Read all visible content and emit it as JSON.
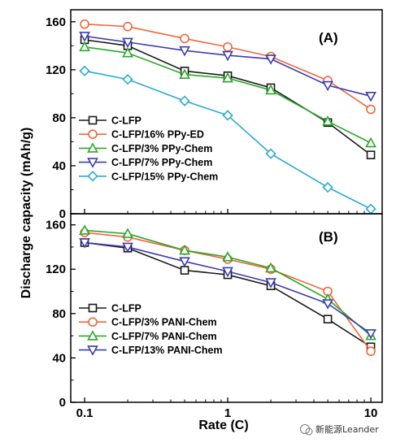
{
  "y_axis_title": "Discharge capacity (mAh/g)",
  "x_axis_title": "Rate (C)",
  "watermark": "新能源Leander",
  "x_ticks": [
    0.1,
    1,
    10
  ],
  "x_tick_labels": [
    "0.1",
    "1",
    "10"
  ],
  "colors": {
    "C-LFP": "#1a1a1a",
    "red": "#f0673a",
    "green": "#2aa82a",
    "blue": "#3c3cb4",
    "cyan": "#29a9d6"
  },
  "chart_data": [
    {
      "type": "line",
      "panel_label": "(A)",
      "xscale": "log",
      "xlim": [
        0.08,
        12
      ],
      "ylim": [
        0,
        170
      ],
      "y_ticks": [
        0,
        40,
        80,
        120,
        160
      ],
      "x": [
        0.1,
        0.2,
        0.5,
        1,
        2,
        5,
        10
      ],
      "legend_position": "lower-left",
      "series": [
        {
          "name": "C-LFP",
          "marker": "square",
          "color": "#1a1a1a",
          "values": [
            145,
            140,
            119,
            115,
            105,
            76,
            49
          ]
        },
        {
          "name": "C-LFP/16% PPy-ED",
          "marker": "circle",
          "color": "#f0673a",
          "values": [
            158,
            156,
            146,
            139,
            131,
            111,
            87
          ]
        },
        {
          "name": "C-LFP/3% PPy-Chem",
          "marker": "triangle-up",
          "color": "#2aa82a",
          "values": [
            139,
            134,
            116,
            113,
            103,
            77,
            59
          ]
        },
        {
          "name": "C-LFP/7% PPy-Chem",
          "marker": "triangle-down",
          "color": "#3c3cb4",
          "values": [
            148,
            143,
            136,
            132,
            129,
            107,
            98
          ]
        },
        {
          "name": "C-LFP/15% PPy-Chem",
          "marker": "diamond",
          "color": "#29a9d6",
          "values": [
            119,
            112,
            94,
            82,
            50,
            22,
            4
          ]
        }
      ]
    },
    {
      "type": "line",
      "panel_label": "(B)",
      "xscale": "log",
      "xlim": [
        0.08,
        12
      ],
      "ylim": [
        0,
        170
      ],
      "y_ticks": [
        0,
        40,
        80,
        120,
        160
      ],
      "x": [
        0.1,
        0.2,
        0.5,
        1,
        2,
        5,
        10
      ],
      "legend_position": "lower-left",
      "series": [
        {
          "name": "C-LFP",
          "marker": "square",
          "color": "#1a1a1a",
          "values": [
            144,
            139,
            119,
            115,
            105,
            75,
            50
          ]
        },
        {
          "name": "C-LFP/3% PANI-Chem",
          "marker": "circle",
          "color": "#f0673a",
          "values": [
            153,
            149,
            137,
            129,
            120,
            100,
            46
          ]
        },
        {
          "name": "C-LFP/7% PANI-Chem",
          "marker": "triangle-up",
          "color": "#2aa82a",
          "values": [
            155,
            152,
            137,
            131,
            121,
            93,
            60
          ]
        },
        {
          "name": "C-LFP/13% PANI-Chem",
          "marker": "triangle-down",
          "color": "#3c3cb4",
          "values": [
            144,
            140,
            127,
            118,
            108,
            89,
            62
          ]
        }
      ]
    }
  ]
}
